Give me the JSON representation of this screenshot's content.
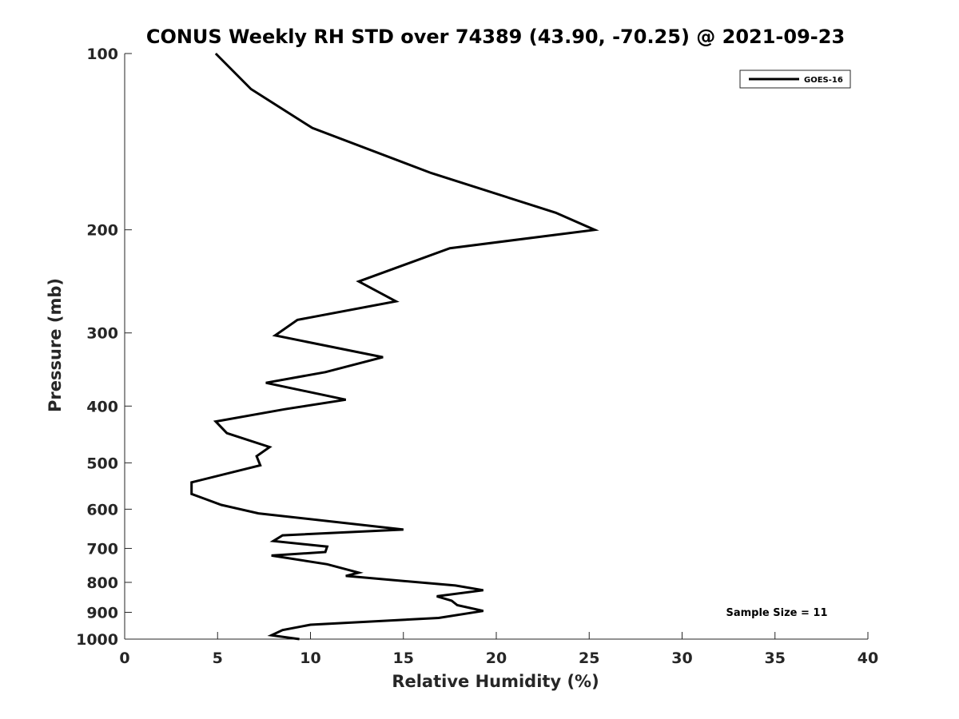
{
  "chart_data": {
    "type": "line",
    "title": "CONUS Weekly RH STD over 74389 (43.90, -70.25) @ 2021-09-23",
    "xlabel": "Relative Humidity (%)",
    "ylabel": "Pressure (mb)",
    "xlim": [
      0,
      40
    ],
    "ylim": [
      1000,
      100
    ],
    "y_scale": "log",
    "y_reversed": true,
    "x_ticks": [
      0,
      5,
      10,
      15,
      20,
      25,
      30,
      35,
      40
    ],
    "y_ticks": [
      100,
      200,
      300,
      400,
      500,
      600,
      700,
      800,
      900,
      1000
    ],
    "grid": false,
    "legend": {
      "position": "top-right",
      "entries": [
        "GOES-16"
      ]
    },
    "annotation": "Sample Size = 11",
    "series": [
      {
        "name": "GOES-16",
        "color": "#000000",
        "x": [
          4.9,
          6.8,
          10.1,
          16.5,
          23.2,
          25.3,
          17.5,
          12.6,
          14.6,
          9.3,
          8.1,
          13.9,
          10.8,
          7.6,
          11.9,
          8.6,
          4.9,
          5.5,
          7.8,
          7.1,
          7.3,
          3.6,
          3.6,
          5.2,
          7.2,
          15.0,
          8.5,
          8.0,
          10.9,
          10.8,
          7.9,
          10.9,
          12.6,
          11.9,
          17.8,
          19.3,
          16.8,
          17.6,
          17.9,
          19.3,
          16.9,
          10.0,
          8.5,
          7.9,
          9.4
        ],
        "y": [
          100,
          115,
          134,
          160,
          187,
          200,
          215,
          245,
          265,
          285,
          303,
          330,
          350,
          365,
          390,
          405,
          425,
          445,
          470,
          487,
          505,
          540,
          565,
          590,
          610,
          650,
          665,
          680,
          695,
          710,
          720,
          745,
          770,
          780,
          810,
          825,
          845,
          860,
          875,
          895,
          920,
          945,
          965,
          985,
          1000
        ]
      }
    ]
  }
}
